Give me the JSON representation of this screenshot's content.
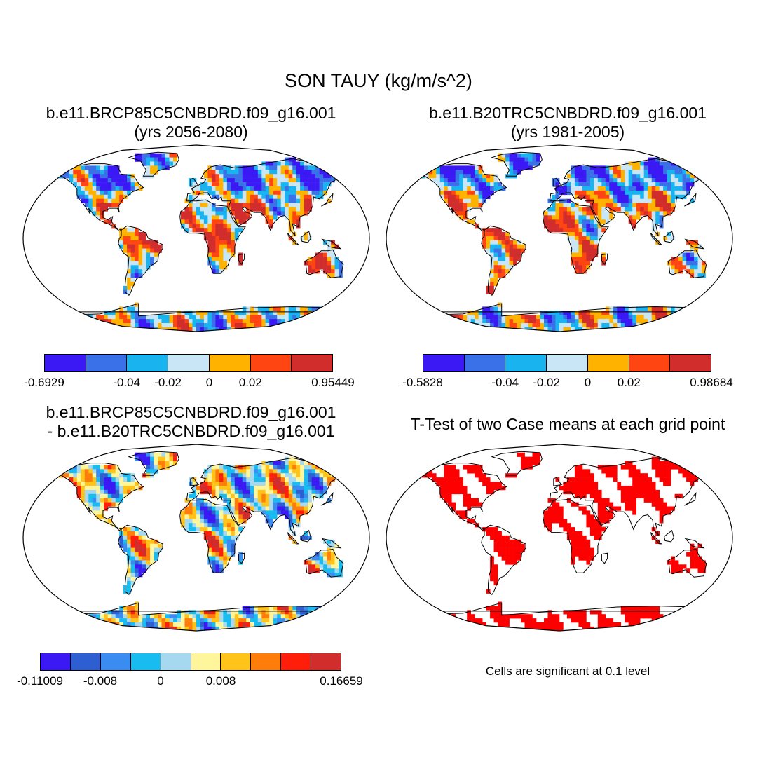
{
  "title": "SON TAUY (kg/m/s^2)",
  "colors": {
    "ocean": "#ffffff",
    "coast": "#000000",
    "sig": "#ff0000"
  },
  "panels": {
    "p1": {
      "title_line1": "b.e11.BRCP85C5CNBDRD.f09_g16.001",
      "title_line2": "(yrs 2056-2080)"
    },
    "p2": {
      "title_line1": "b.e11.B20TRC5CNBDRD.f09_g16.001",
      "title_line2": "(yrs 1981-2005)"
    },
    "p3": {
      "title_line1": "b.e11.BRCP85C5CNBDRD.f09_g16.001",
      "title_line2": "- b.e11.B20TRC5CNBDRD.f09_g16.001"
    },
    "p4": {
      "title_line1": "T-Test of two Case means at each grid point",
      "note": "Cells are significant at 0.1 level"
    }
  },
  "chart_data": [
    {
      "type": "heatmap",
      "panel": "p1",
      "projection": "robinson",
      "colorbar": {
        "colors": [
          "#3b19f5",
          "#3a70e8",
          "#19b4f0",
          "#c8e6f5",
          "#ffb300",
          "#ff4612",
          "#d22d2d"
        ],
        "labels": [
          "-0.6929",
          "-0.04",
          "-0.02",
          "0",
          "0.02",
          "0.95449"
        ],
        "label_boundaries": [
          0,
          2,
          3,
          4,
          5,
          7
        ]
      }
    },
    {
      "type": "heatmap",
      "panel": "p2",
      "projection": "robinson",
      "colorbar": {
        "colors": [
          "#3b19f5",
          "#3a70e8",
          "#19b4f0",
          "#c8e6f5",
          "#ffb300",
          "#ff4612",
          "#d22d2d"
        ],
        "labels": [
          "-0.5828",
          "-0.04",
          "-0.02",
          "0",
          "0.02",
          "0.98684"
        ],
        "label_boundaries": [
          0,
          2,
          3,
          4,
          5,
          7
        ]
      }
    },
    {
      "type": "heatmap",
      "panel": "p3",
      "projection": "robinson",
      "colorbar": {
        "colors": [
          "#3b19f5",
          "#2d5fd2",
          "#3a8cf0",
          "#19bcf0",
          "#a6d8f0",
          "#fff59a",
          "#ffc31a",
          "#ff7d0a",
          "#ff1e0a",
          "#d22d2d"
        ],
        "labels": [
          "-0.11009",
          "-0.008",
          "0",
          "0.008",
          "0.16659"
        ],
        "label_boundaries": [
          0,
          2,
          4,
          6,
          10
        ]
      }
    },
    {
      "type": "heatmap",
      "panel": "p4",
      "projection": "robinson",
      "significance_level": 0.1
    }
  ]
}
